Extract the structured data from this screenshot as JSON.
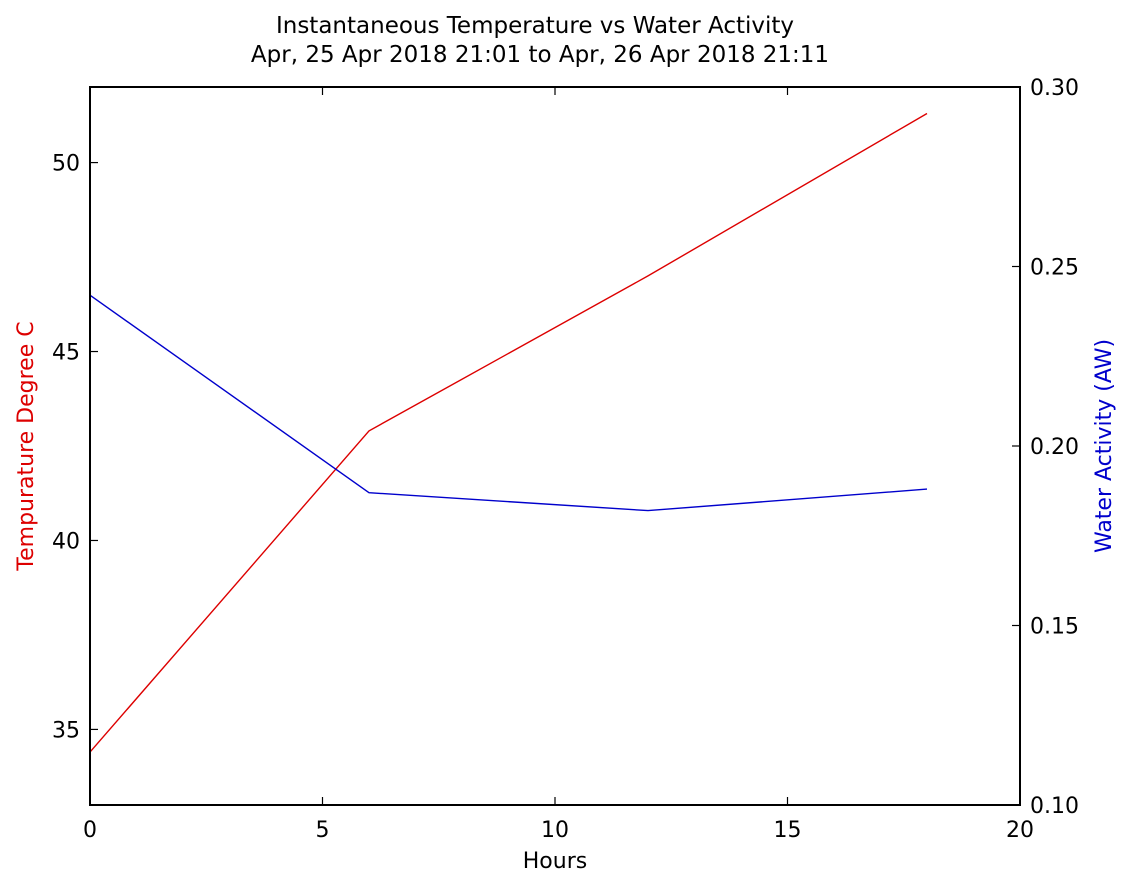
{
  "chart_data": {
    "type": "line",
    "title": "Instantaneous Temperature vs Water Activity",
    "subtitle": "Apr, 25 Apr 2018 21:01 to Apr, 26 Apr 2018 21:11",
    "xlabel": "Hours",
    "ylabel_left": "Tempurature Degree C",
    "ylabel_right": "Water Activity (AW)",
    "xlim": [
      0,
      20
    ],
    "ylim_left": [
      33,
      52
    ],
    "ylim_right": [
      0.1,
      0.3
    ],
    "x_ticks": [
      0,
      5,
      10,
      15,
      20
    ],
    "x_tick_labels": [
      "0",
      "5",
      "10",
      "15",
      "20"
    ],
    "y_left_ticks": [
      35,
      40,
      45,
      50
    ],
    "y_left_tick_labels": [
      "35",
      "40",
      "45",
      "50"
    ],
    "y_right_ticks": [
      0.1,
      0.15,
      0.2,
      0.25,
      0.3
    ],
    "y_right_tick_labels": [
      "0.10",
      "0.15",
      "0.20",
      "0.25",
      "0.30"
    ],
    "grid": false,
    "colors": {
      "temperature": "#dd0000",
      "water_activity": "#0000cc",
      "axes": "#000000"
    },
    "series": [
      {
        "axis": "left",
        "color": "#dd0000",
        "x": [
          0,
          6,
          12,
          18
        ],
        "values": [
          34.4,
          42.9,
          47.0,
          51.3
        ]
      },
      {
        "axis": "right",
        "color": "#0000cc",
        "x": [
          0,
          6,
          12,
          18
        ],
        "values": [
          0.242,
          0.187,
          0.182,
          0.188
        ]
      }
    ]
  }
}
